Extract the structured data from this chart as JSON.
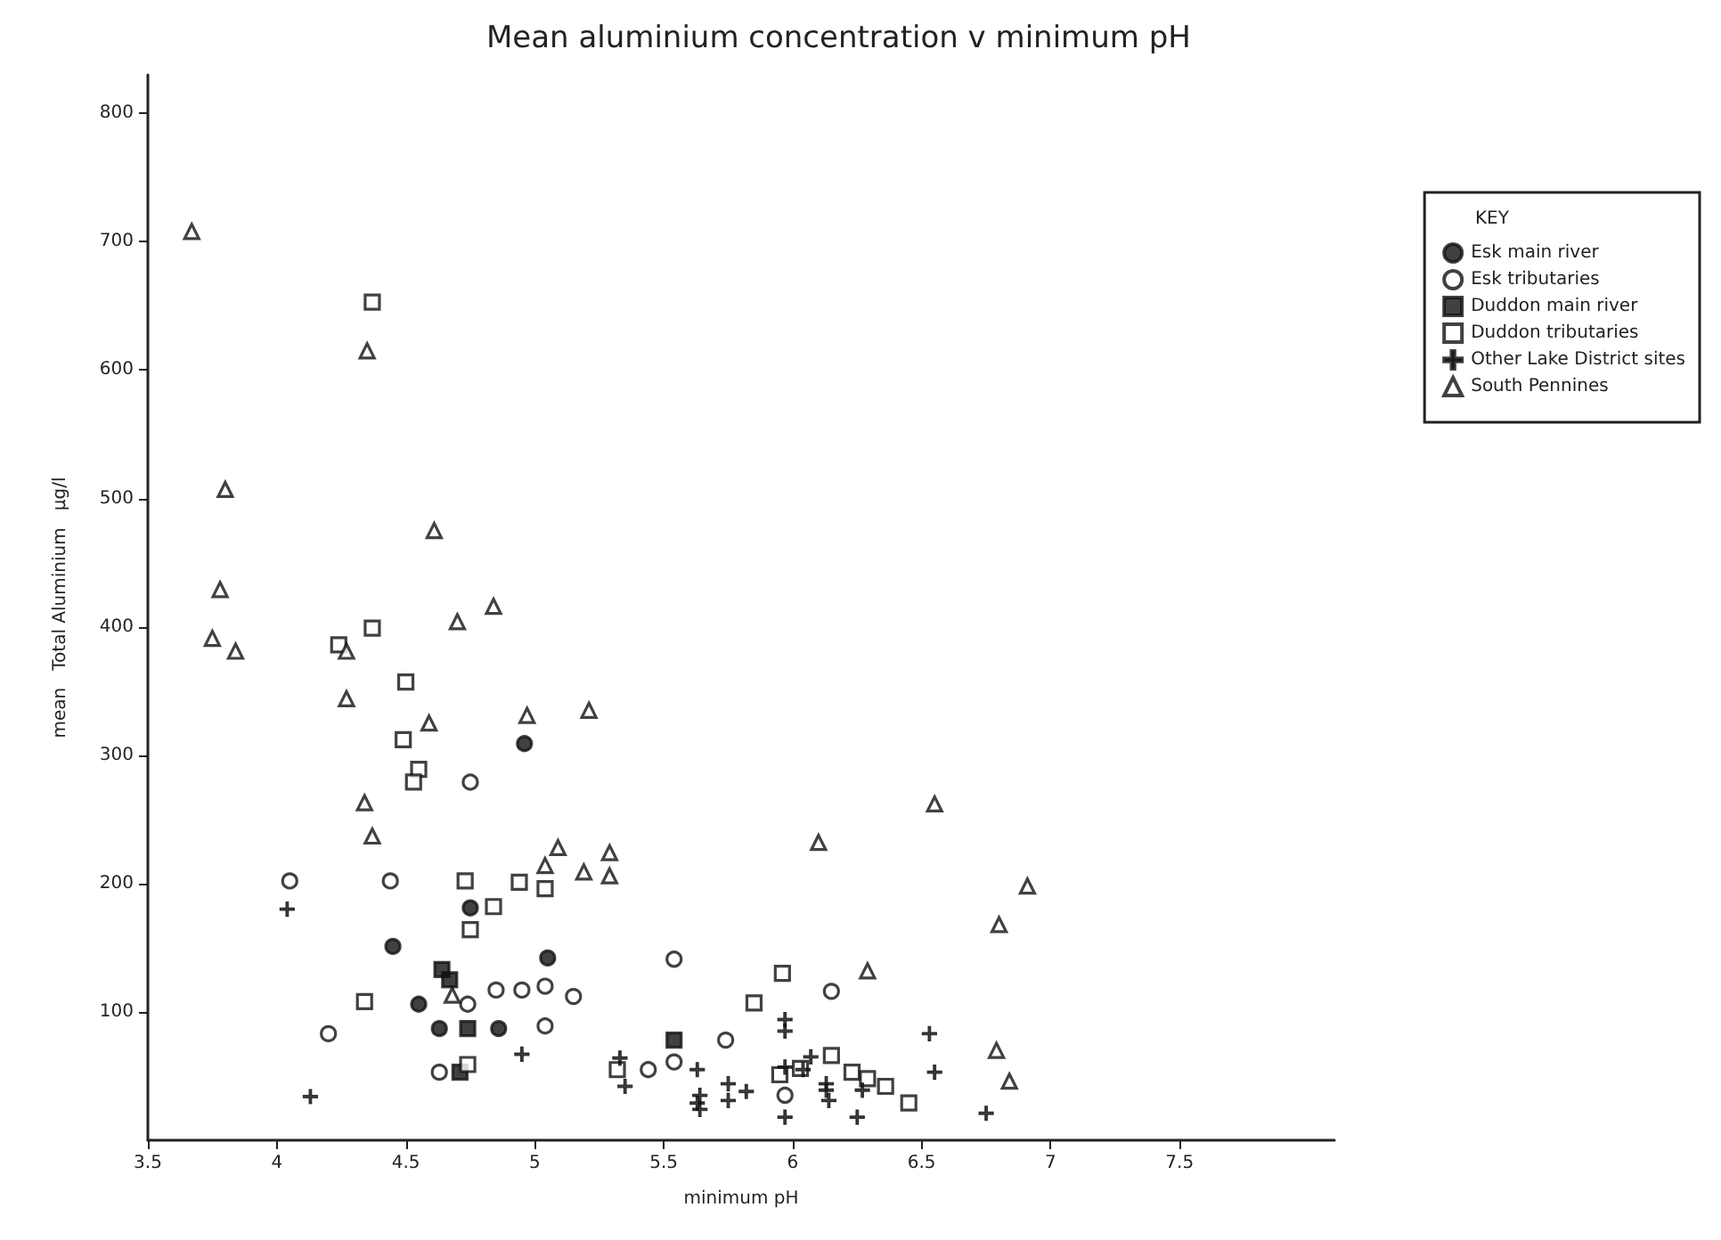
{
  "chart_data": {
    "type": "scatter",
    "title": "Mean aluminium concentration v minimum pH",
    "xlabel": "minimum pH",
    "ylabel": "mean   Total Aluminium   µg/l",
    "legend_title": "KEY",
    "legend": "top right",
    "grid": false,
    "xlim": [
      3.5,
      8.1
    ],
    "xticks": [
      3.5,
      4,
      4.5,
      5,
      5.5,
      6,
      6.5,
      7,
      7.5
    ],
    "ylim": [
      0,
      830
    ],
    "yticks": [
      100,
      200,
      300,
      400,
      500,
      600,
      700,
      800
    ],
    "series": [
      {
        "name": "Esk main river",
        "color": "#111111",
        "marker": "circle",
        "x": [
          4.96,
          4.75,
          4.45,
          5.05,
          4.55,
          4.63,
          4.86
        ],
        "values": [
          309,
          181,
          151,
          142,
          106,
          87,
          87
        ]
      },
      {
        "name": "Esk tributaries",
        "color": "#ffffff",
        "marker": "circle",
        "x": [
          4.05,
          4.44,
          4.75,
          4.2,
          4.74,
          4.85,
          4.95,
          5.04,
          5.15,
          5.04,
          4.63,
          5.54,
          5.44,
          5.54,
          5.74,
          6.15,
          5.97
        ],
        "values": [
          202,
          202,
          279,
          83,
          106,
          117,
          117,
          120,
          112,
          89,
          53,
          141,
          55,
          61,
          78,
          116,
          35
        ]
      },
      {
        "name": "Duddon main river",
        "color": "#111111",
        "marker": "square",
        "x": [
          4.64,
          4.67,
          4.74,
          4.71,
          5.54
        ],
        "values": [
          133,
          125,
          87,
          53,
          78
        ]
      },
      {
        "name": "Duddon tributaries",
        "color": "#ffffff",
        "marker": "square",
        "x": [
          4.24,
          4.37,
          4.37,
          4.5,
          4.49,
          4.55,
          4.53,
          4.73,
          4.84,
          4.75,
          4.94,
          5.04,
          4.34,
          4.74,
          5.32,
          5.85,
          5.96,
          5.95,
          6.03,
          6.15,
          6.23,
          6.29,
          6.36,
          6.45
        ],
        "values": [
          386,
          399,
          653,
          357,
          312,
          289,
          279,
          202,
          182,
          164,
          201,
          196,
          108,
          59,
          55,
          107,
          130,
          51,
          56,
          66,
          53,
          48,
          42,
          29
        ]
      },
      {
        "name": "Other Lake District sites",
        "color": "#111111",
        "marker": "cross",
        "x": [
          4.04,
          4.13,
          4.95,
          5.33,
          5.35,
          5.63,
          5.64,
          5.64,
          5.75,
          5.75,
          5.82,
          5.97,
          5.97,
          5.97,
          5.97,
          6.07,
          6.04,
          6.13,
          6.14,
          6.25,
          6.27,
          6.53,
          6.55,
          6.75,
          6.13,
          5.63
        ],
        "values": [
          180,
          34,
          67,
          64,
          42,
          55,
          35,
          24,
          44,
          31,
          38,
          94,
          85,
          57,
          18,
          65,
          55,
          44,
          31,
          18,
          39,
          83,
          53,
          21,
          39,
          29
        ]
      },
      {
        "name": "South Pennines",
        "color": "#ffffff",
        "marker": "triangle",
        "x": [
          3.67,
          3.8,
          3.78,
          3.75,
          3.84,
          4.27,
          4.27,
          4.34,
          4.37,
          4.35,
          4.59,
          4.61,
          4.7,
          4.84,
          4.68,
          4.97,
          5.04,
          5.09,
          5.19,
          5.21,
          5.29,
          5.29,
          6.1,
          6.29,
          6.55,
          6.8,
          6.91,
          6.79,
          6.84
        ],
        "values": [
          708,
          507,
          429,
          391,
          381,
          381,
          344,
          263,
          237,
          615,
          325,
          475,
          404,
          416,
          113,
          331,
          214,
          228,
          209,
          335,
          224,
          206,
          232,
          132,
          262,
          168,
          198,
          70,
          46
        ]
      }
    ]
  }
}
